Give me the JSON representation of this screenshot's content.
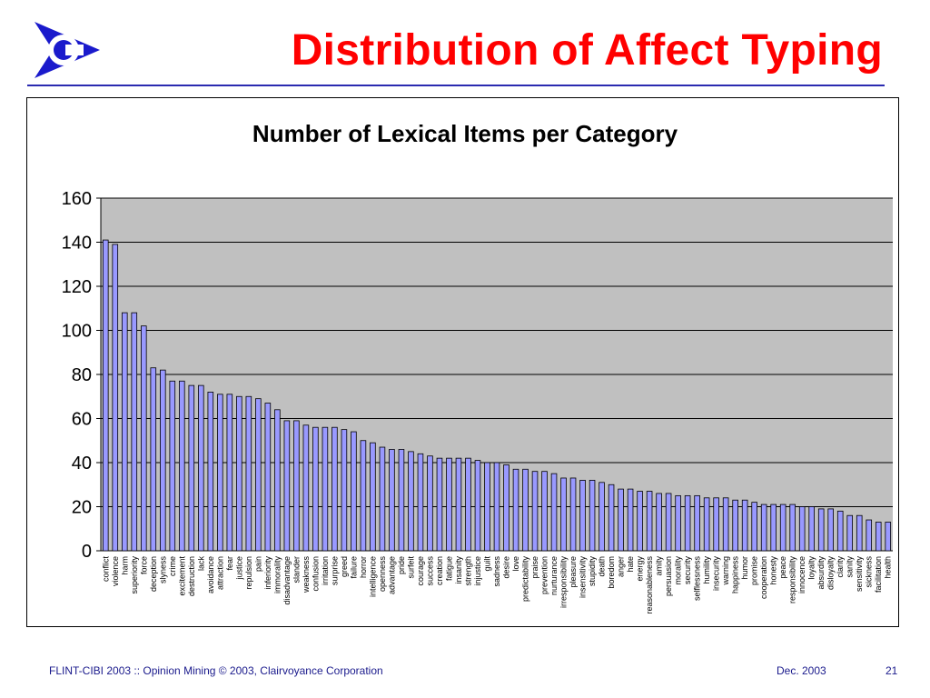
{
  "slide": {
    "title": "Distribution of Affect Typing",
    "logo_icon": "clairvoyance-arrow-logo-icon",
    "accent_color": "#ff0000",
    "rule_color": "#2a2ab0"
  },
  "footer": {
    "left": "FLINT-CIBI 2003 :: Opinion Mining  © 2003, Clairvoyance Corporation",
    "date": "Dec. 2003",
    "page": "21"
  },
  "chart_data": {
    "type": "bar",
    "title": "Number of Lexical Items per Category",
    "xlabel": "",
    "ylabel": "",
    "ylim": [
      0,
      160
    ],
    "yticks": [
      0,
      20,
      40,
      60,
      80,
      100,
      120,
      140,
      160
    ],
    "grid": true,
    "legend": "none",
    "plot_background": "#c0c0c0",
    "bar_color": "#9999ff",
    "categories": [
      "conflict",
      "violence",
      "harm",
      "superiority",
      "force",
      "deception",
      "slyness",
      "crime",
      "excitement",
      "destruction",
      "lack",
      "avoidance",
      "attraction",
      "fear",
      "justice",
      "repulsion",
      "pain",
      "inferiority",
      "immorality",
      "disadvantage",
      "slander",
      "weakness",
      "confusion",
      "irritation",
      "surprise",
      "greed",
      "failure",
      "horror",
      "intelligence",
      "openness",
      "advantage",
      "pride",
      "surfeit",
      "courage",
      "success",
      "creation",
      "fatigue",
      "insanity",
      "strength",
      "injustice",
      "guilt",
      "sadness",
      "desire",
      "love",
      "predictability",
      "praise",
      "prevention",
      "nurturance",
      "irresponsibility",
      "pleasure",
      "insensitivity",
      "stupidity",
      "death",
      "boredom",
      "anger",
      "hate",
      "energy",
      "reasonableness",
      "amity",
      "persuasion",
      "morality",
      "security",
      "selflessness",
      "humility",
      "insecurity",
      "warning",
      "happiness",
      "humor",
      "promise",
      "cooperation",
      "honesty",
      "peace",
      "responsibility",
      "innocence",
      "loyalty",
      "absurdity",
      "disloyalty",
      "clarity",
      "sanity",
      "sensitivity",
      "sickness",
      "facilitation",
      "health"
    ],
    "values": [
      141,
      139,
      108,
      108,
      102,
      83,
      82,
      77,
      77,
      75,
      75,
      72,
      71,
      71,
      70,
      70,
      69,
      67,
      64,
      59,
      59,
      57,
      56,
      56,
      56,
      55,
      54,
      50,
      49,
      47,
      46,
      46,
      45,
      44,
      43,
      42,
      42,
      42,
      42,
      41,
      40,
      40,
      39,
      37,
      37,
      36,
      36,
      35,
      33,
      33,
      32,
      32,
      31,
      30,
      28,
      28,
      27,
      27,
      26,
      26,
      25,
      25,
      25,
      24,
      24,
      24,
      23,
      23,
      22,
      21,
      21,
      21,
      21,
      20,
      20,
      19,
      19,
      18,
      16,
      16,
      14,
      13,
      13
    ]
  }
}
